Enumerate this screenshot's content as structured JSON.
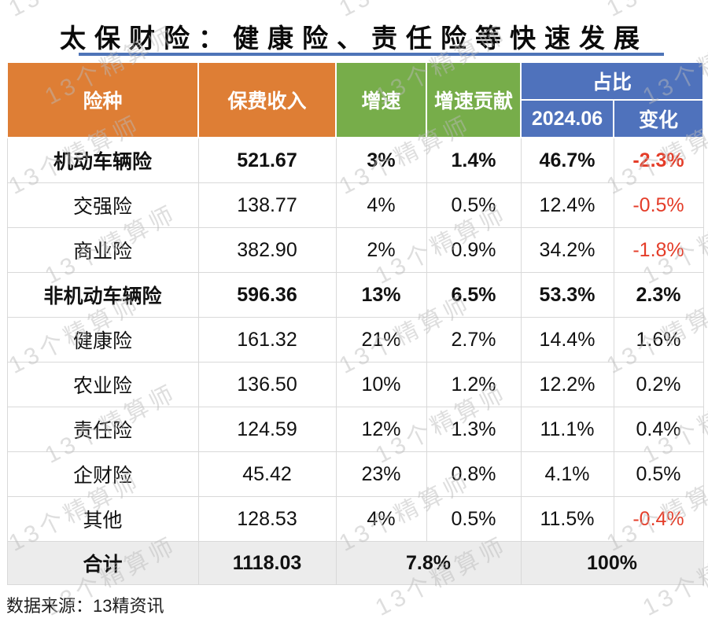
{
  "title": "太保财险：健康险、责任险等快速发展",
  "watermark": {
    "text": "13个精算师"
  },
  "source": "数据来源：13精资讯",
  "colors": {
    "header_orange": "#DE7E35",
    "header_green": "#77AD4A",
    "header_blue": "#4F72BC",
    "title_underline": "#4E74B8",
    "negative_value": "#E43C28",
    "footer_background": "#ECECEC"
  },
  "table": {
    "headers": {
      "col_type": "险种",
      "col_premium": "保费收入",
      "col_growth": "增速",
      "col_contribution": "增速贡献",
      "col_share_group": "占比",
      "col_share_period": "2024.06",
      "col_change": "变化"
    },
    "rows": [
      {
        "type": "机动车辆险",
        "premium": "521.67",
        "growth": "3%",
        "contribution": "1.4%",
        "share": "46.7%",
        "change": "-2.3%",
        "bold": true
      },
      {
        "type": "交强险",
        "premium": "138.77",
        "growth": "4%",
        "contribution": "0.5%",
        "share": "12.4%",
        "change": "-0.5%",
        "bold": false
      },
      {
        "type": "商业险",
        "premium": "382.90",
        "growth": "2%",
        "contribution": "0.9%",
        "share": "34.2%",
        "change": "-1.8%",
        "bold": false
      },
      {
        "type": "非机动车辆险",
        "premium": "596.36",
        "growth": "13%",
        "contribution": "6.5%",
        "share": "53.3%",
        "change": "2.3%",
        "bold": true
      },
      {
        "type": "健康险",
        "premium": "161.32",
        "growth": "21%",
        "contribution": "2.7%",
        "share": "14.4%",
        "change": "1.6%",
        "bold": false
      },
      {
        "type": "农业险",
        "premium": "136.50",
        "growth": "10%",
        "contribution": "1.2%",
        "share": "12.2%",
        "change": "0.2%",
        "bold": false
      },
      {
        "type": "责任险",
        "premium": "124.59",
        "growth": "12%",
        "contribution": "1.3%",
        "share": "11.1%",
        "change": "0.4%",
        "bold": false
      },
      {
        "type": "企财险",
        "premium": "45.42",
        "growth": "23%",
        "contribution": "0.8%",
        "share": "4.1%",
        "change": "0.5%",
        "bold": false
      },
      {
        "type": "其他",
        "premium": "128.53",
        "growth": "4%",
        "contribution": "0.5%",
        "share": "11.5%",
        "change": "-0.4%",
        "bold": false
      }
    ],
    "footer": {
      "type": "合计",
      "premium": "1118.03",
      "growth": "7.8%",
      "share": "100%"
    }
  },
  "chart_data": {
    "type": "table",
    "title": "太保财险：健康险、责任险等快速发展",
    "columns": [
      "险种",
      "保费收入",
      "增速",
      "增速贡献",
      "占比 2024.06",
      "占比 变化"
    ],
    "rows": [
      [
        "机动车辆险",
        521.67,
        "3%",
        "1.4%",
        "46.7%",
        "-2.3%"
      ],
      [
        "交强险",
        138.77,
        "4%",
        "0.5%",
        "12.4%",
        "-0.5%"
      ],
      [
        "商业险",
        382.9,
        "2%",
        "0.9%",
        "34.2%",
        "-1.8%"
      ],
      [
        "非机动车辆险",
        596.36,
        "13%",
        "6.5%",
        "53.3%",
        "2.3%"
      ],
      [
        "健康险",
        161.32,
        "21%",
        "2.7%",
        "14.4%",
        "1.6%"
      ],
      [
        "农业险",
        136.5,
        "10%",
        "1.2%",
        "12.2%",
        "0.2%"
      ],
      [
        "责任险",
        124.59,
        "12%",
        "1.3%",
        "11.1%",
        "0.4%"
      ],
      [
        "企财险",
        45.42,
        "23%",
        "0.8%",
        "4.1%",
        "0.5%"
      ],
      [
        "其他",
        128.53,
        "4%",
        "0.5%",
        "11.5%",
        "-0.4%"
      ]
    ],
    "totals": [
      "合计",
      1118.03,
      "7.8%",
      "",
      "100%",
      ""
    ],
    "source": "数据来源：13精资讯"
  }
}
